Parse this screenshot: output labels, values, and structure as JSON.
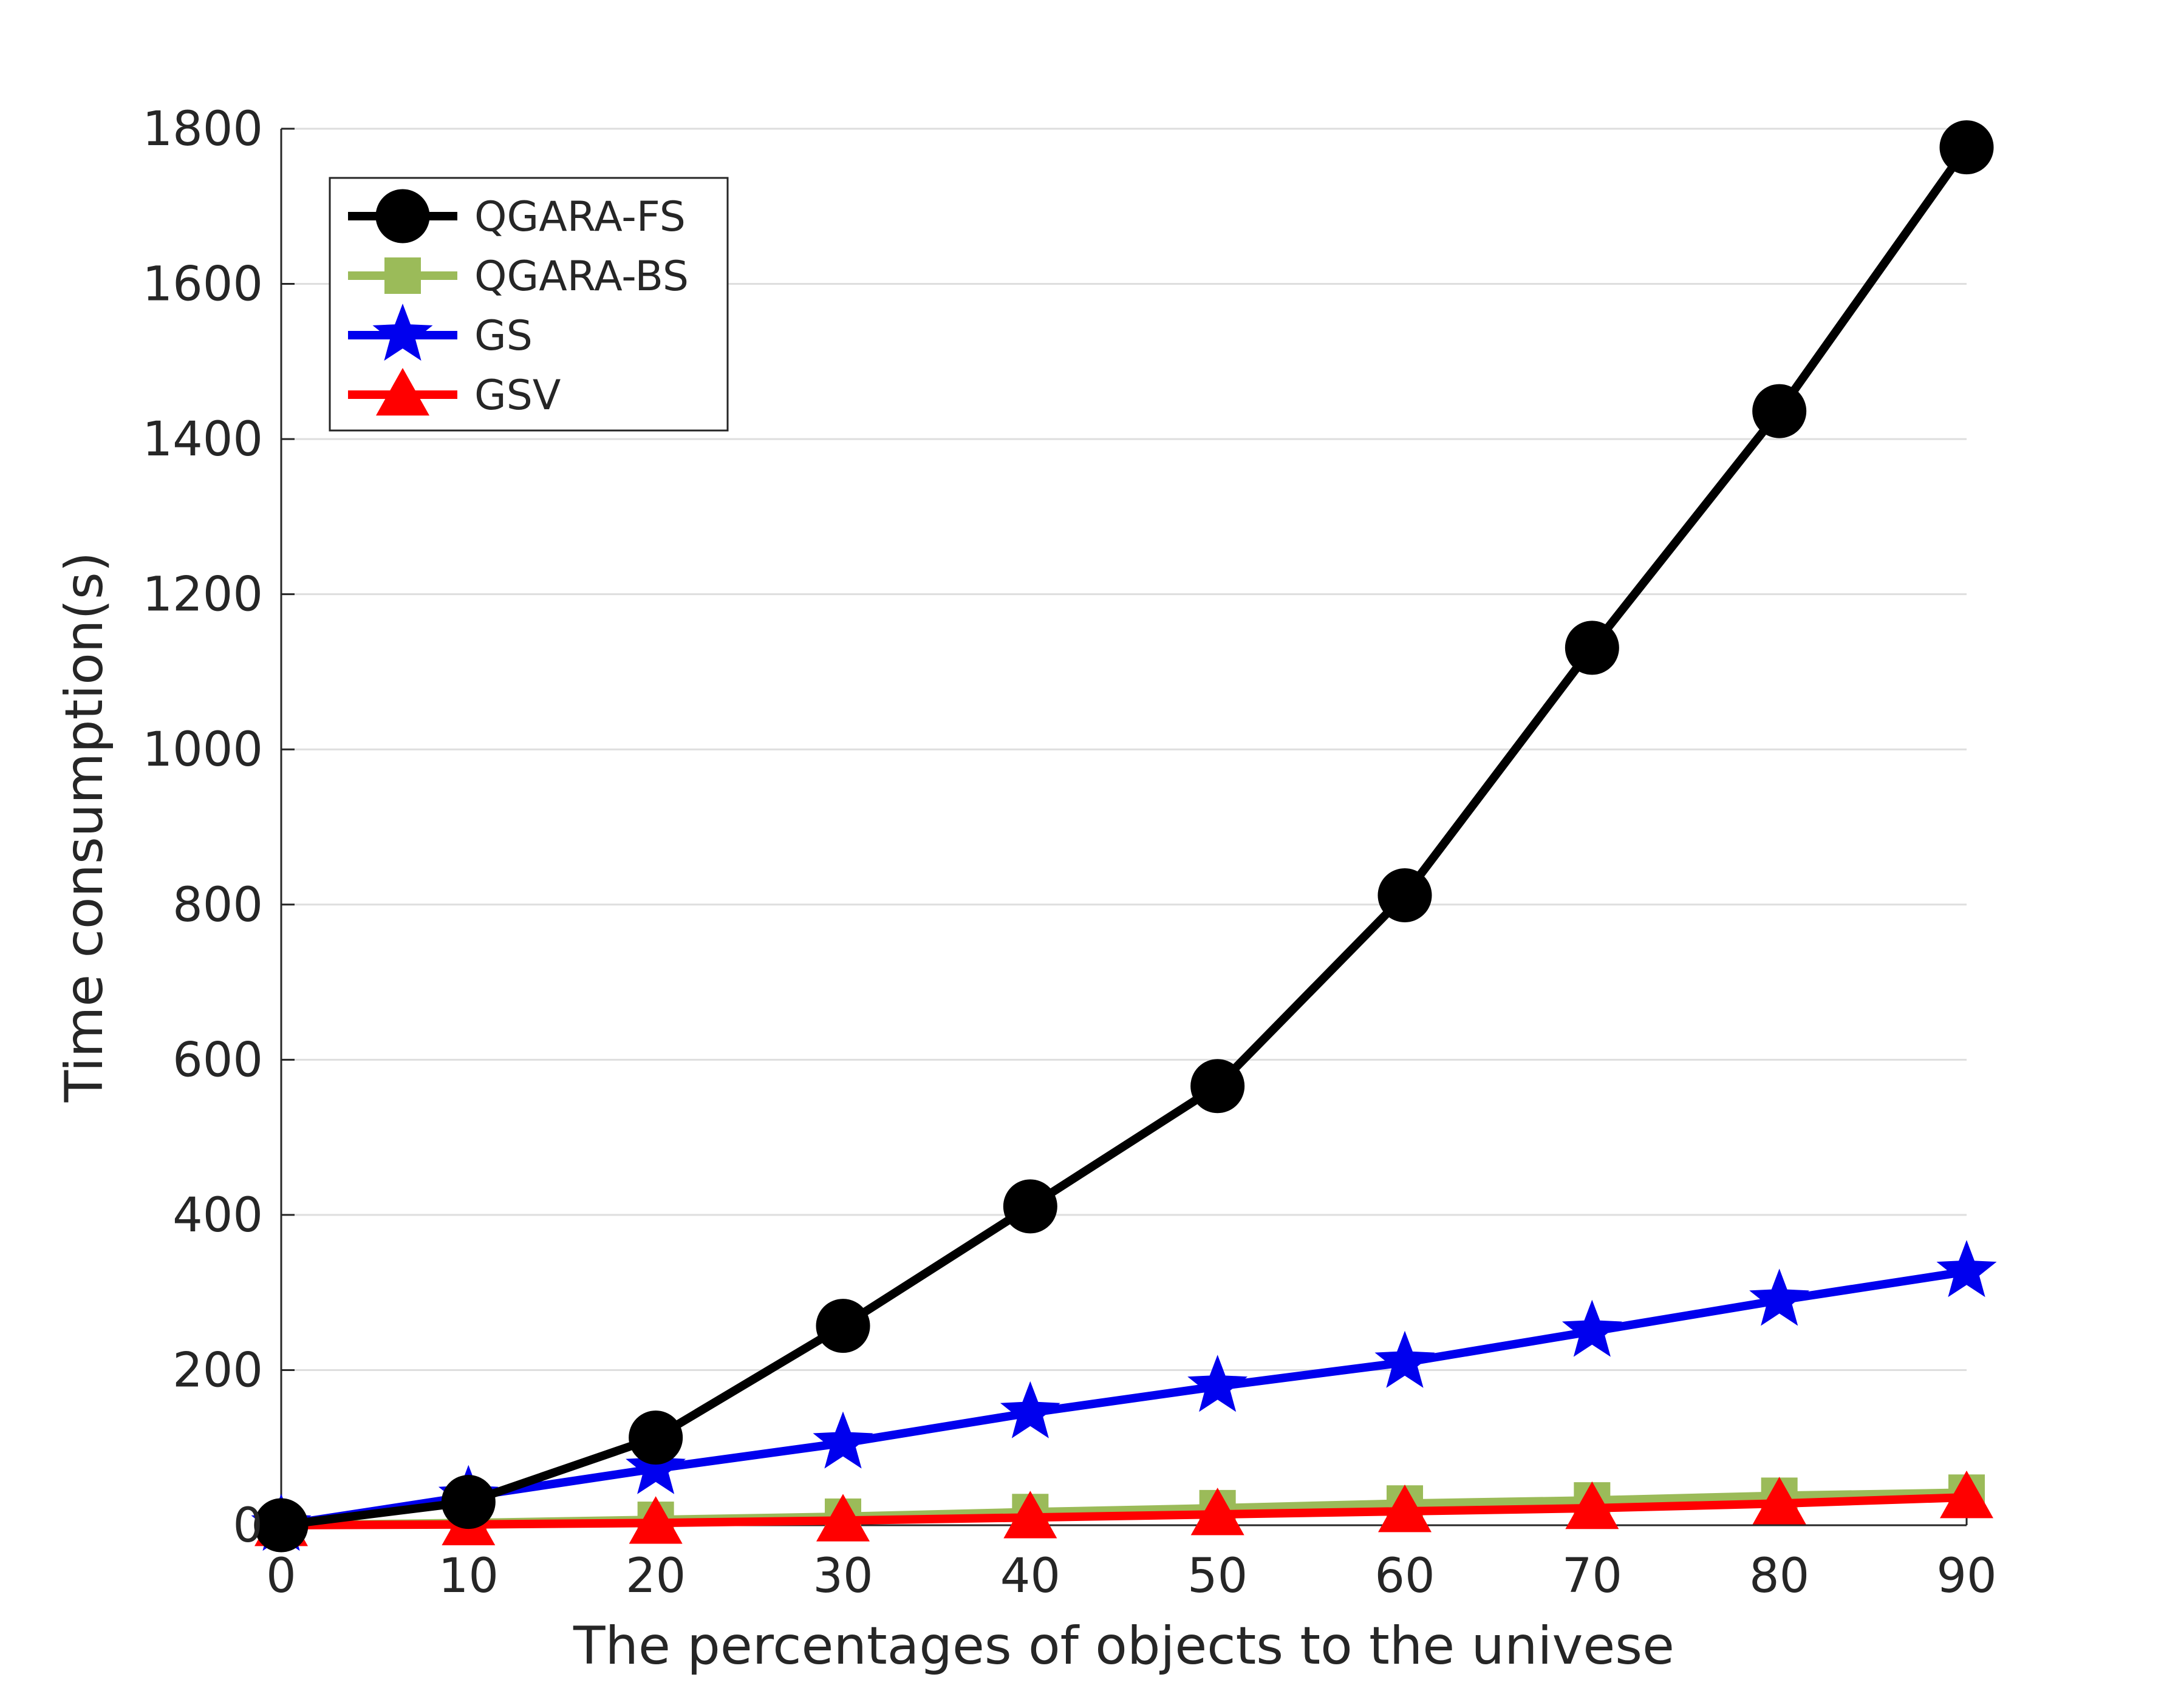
{
  "chart_data": {
    "type": "line",
    "xlabel": "The percentages of objects to the univese",
    "ylabel": "Time consumption(s)",
    "xlim": [
      0,
      90
    ],
    "ylim": [
      0,
      1800
    ],
    "x_ticks": [
      "0",
      "10",
      "20",
      "30",
      "40",
      "50",
      "60",
      "70",
      "80",
      "90"
    ],
    "y_ticks": [
      "0",
      "200",
      "400",
      "600",
      "800",
      "1000",
      "1200",
      "1400",
      "1600",
      "1800"
    ],
    "grid": "horizontal",
    "legend_position": "top-left",
    "x": [
      0,
      10,
      20,
      30,
      40,
      50,
      60,
      70,
      80,
      90
    ],
    "series": [
      {
        "name": "QGARA-FS",
        "color": "#000000",
        "marker": "circle",
        "values": [
          0,
          30,
          113,
          257,
          411,
          566,
          812,
          1131,
          1436,
          1776
        ]
      },
      {
        "name": "QGARA-BS",
        "color": "#9bbb59",
        "marker": "square",
        "values": [
          0,
          3,
          7,
          11,
          17,
          22,
          28,
          32,
          38,
          42
        ]
      },
      {
        "name": "GS",
        "color": "#0000ee",
        "marker": "star",
        "values": [
          0,
          37,
          73,
          106,
          145,
          179,
          210,
          250,
          290,
          327
        ]
      },
      {
        "name": "GSV",
        "color": "#ff0000",
        "marker": "triangle",
        "values": [
          0,
          1,
          3,
          6,
          10,
          14,
          18,
          22,
          28,
          36
        ]
      }
    ]
  }
}
